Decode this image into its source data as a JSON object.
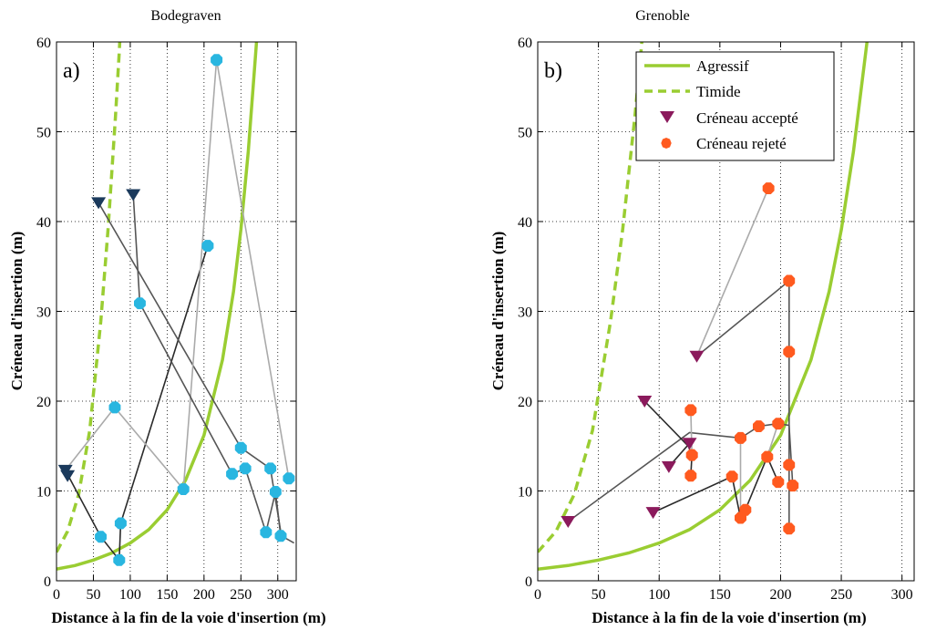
{
  "colors": {
    "agressif": "#9acd32",
    "timide": "#9acd32",
    "accepted_left": "#1b3a5c",
    "rejected_left": "#29b6e0",
    "accepted_right": "#8b1a5c",
    "rejected_right": "#ff5a1f",
    "trajectory_dark": "#2a2a2a",
    "trajectory_mid": "#555555",
    "trajectory_light": "#aaaaaa"
  },
  "chart_data": [
    {
      "type": "scatter",
      "title": "Bodegraven",
      "panel_label": "a)",
      "xlabel": "Distance à la fin de la voie d'insertion (m)",
      "ylabel": "Créneau d'insertion (m)",
      "xlim": [
        0,
        325
      ],
      "ylim": [
        0,
        60
      ],
      "xticks": [
        0,
        50,
        100,
        150,
        200,
        250,
        300
      ],
      "yticks": [
        0,
        10,
        20,
        30,
        40,
        50,
        60
      ],
      "grid": true,
      "curves": [
        {
          "name": "Agressif",
          "style": "solid",
          "points": [
            [
              0,
              1.3
            ],
            [
              25,
              1.7
            ],
            [
              50,
              2.3
            ],
            [
              75,
              3.1
            ],
            [
              100,
              4.2
            ],
            [
              125,
              5.7
            ],
            [
              150,
              7.9
            ],
            [
              175,
              11.2
            ],
            [
              200,
              16.2
            ],
            [
              225,
              24.6
            ],
            [
              240,
              32.2
            ],
            [
              250,
              39.1
            ],
            [
              260,
              47.8
            ],
            [
              270,
              58.7
            ],
            [
              273,
              62
            ]
          ]
        },
        {
          "name": "Timide",
          "style": "dashed",
          "points": [
            [
              0,
              3.2
            ],
            [
              15,
              5.5
            ],
            [
              30,
              9.6
            ],
            [
              45,
              16.7
            ],
            [
              60,
              28.9
            ],
            [
              70,
              39.2
            ],
            [
              80,
              51.7
            ],
            [
              85,
              58.8
            ],
            [
              87,
              62
            ]
          ]
        }
      ],
      "trajectories": [
        {
          "shade": "dark",
          "points": [
            [
              12,
              12.3
            ],
            [
              60,
              4.9
            ],
            [
              85,
              2.3
            ],
            [
              87,
              6.4
            ],
            [
              205,
              37.3
            ]
          ]
        },
        {
          "shade": "mid",
          "points": [
            [
              57,
              42.1
            ],
            [
              250,
              14.8
            ],
            [
              290,
              12.5
            ],
            [
              305,
              5.0
            ],
            [
              322,
              4.2
            ]
          ]
        },
        {
          "shade": "light",
          "points": [
            [
              12,
              12.3
            ],
            [
              79,
              19.3
            ],
            [
              172,
              10.2
            ],
            [
              217,
              58.0
            ],
            [
              315,
              11.4
            ]
          ]
        },
        {
          "shade": "mid",
          "points": [
            [
              104,
              43.0
            ],
            [
              113,
              30.9
            ],
            [
              238,
              11.9
            ],
            [
              256,
              12.5
            ],
            [
              284,
              5.4
            ],
            [
              297,
              9.9
            ],
            [
              304,
              5.0
            ]
          ]
        }
      ],
      "accepted": {
        "name": "Créneau accepté",
        "points": [
          [
            12,
            12.3
          ],
          [
            15,
            11.7
          ],
          [
            57,
            42.1
          ],
          [
            104,
            43.0
          ]
        ]
      },
      "rejected": {
        "name": "Créneau rejeté",
        "points": [
          [
            60,
            4.9
          ],
          [
            79,
            19.3
          ],
          [
            85,
            2.3
          ],
          [
            87,
            6.4
          ],
          [
            113,
            30.9
          ],
          [
            172,
            10.2
          ],
          [
            205,
            37.3
          ],
          [
            217,
            58.0
          ],
          [
            238,
            11.9
          ],
          [
            250,
            14.8
          ],
          [
            256,
            12.5
          ],
          [
            284,
            5.4
          ],
          [
            290,
            12.5
          ],
          [
            297,
            9.9
          ],
          [
            304,
            5.0
          ],
          [
            315,
            11.4
          ]
        ]
      }
    },
    {
      "type": "scatter",
      "title": "Grenoble",
      "panel_label": "b)",
      "xlabel": "Distance à la fin de la voie d'insertion (m)",
      "ylabel": "Créneau d'insertion (m)",
      "xlim": [
        0,
        325
      ],
      "ylim": [
        0,
        60
      ],
      "xticks": [
        0,
        50,
        100,
        150,
        200,
        250,
        300
      ],
      "yticks": [
        0,
        10,
        20,
        30,
        40,
        50,
        60
      ],
      "grid": true,
      "legend_position": "top-right",
      "curves": [
        {
          "name": "Agressif",
          "style": "solid",
          "points": [
            [
              0,
              1.3
            ],
            [
              25,
              1.7
            ],
            [
              50,
              2.3
            ],
            [
              75,
              3.1
            ],
            [
              100,
              4.2
            ],
            [
              125,
              5.7
            ],
            [
              150,
              7.9
            ],
            [
              175,
              11.2
            ],
            [
              200,
              16.2
            ],
            [
              225,
              24.6
            ],
            [
              240,
              32.2
            ],
            [
              250,
              39.1
            ],
            [
              260,
              47.8
            ],
            [
              270,
              58.7
            ],
            [
              273,
              62
            ]
          ]
        },
        {
          "name": "Timide",
          "style": "dashed",
          "points": [
            [
              0,
              3.2
            ],
            [
              15,
              5.5
            ],
            [
              30,
              9.6
            ],
            [
              45,
              16.7
            ],
            [
              60,
              28.9
            ],
            [
              70,
              39.2
            ],
            [
              80,
              51.7
            ],
            [
              85,
              58.8
            ],
            [
              87,
              62
            ]
          ]
        }
      ],
      "trajectories": [
        {
          "shade": "mid",
          "points": [
            [
              25,
              6.6
            ],
            [
              125,
              16.5
            ],
            [
              167,
              15.9
            ],
            [
              182,
              17.2
            ],
            [
              198,
              17.5
            ],
            [
              207,
              17.3
            ],
            [
              210,
              10.6
            ]
          ]
        },
        {
          "shade": "light",
          "points": [
            [
              131,
              25.0
            ],
            [
              190,
              43.7
            ]
          ]
        },
        {
          "shade": "mid",
          "points": [
            [
              131,
              25.0
            ],
            [
              207,
              33.4
            ],
            [
              207,
              25.5
            ],
            [
              207,
              12.9
            ],
            [
              207,
              5.8
            ]
          ]
        },
        {
          "shade": "dark",
          "points": [
            [
              88,
              20.0
            ],
            [
              124,
              15.0
            ],
            [
              127,
              14.0
            ],
            [
              126,
              11.7
            ]
          ]
        },
        {
          "shade": "light",
          "points": [
            [
              127,
              14.0
            ],
            [
              126,
              19.0
            ]
          ]
        },
        {
          "shade": "dark",
          "points": [
            [
              95,
              7.6
            ],
            [
              160,
              11.6
            ],
            [
              167,
              7.0
            ]
          ]
        },
        {
          "shade": "light",
          "points": [
            [
              167,
              7.0
            ],
            [
              167,
              15.9
            ]
          ]
        },
        {
          "shade": "dark",
          "points": [
            [
              108,
              12.7
            ],
            [
              125,
              15.3
            ]
          ]
        },
        {
          "shade": "dark",
          "points": [
            [
              171,
              7.9
            ],
            [
              189,
              13.8
            ],
            [
              198,
              11.0
            ]
          ]
        },
        {
          "shade": "light",
          "points": [
            [
              189,
              13.8
            ],
            [
              198,
              17.5
            ]
          ]
        }
      ],
      "accepted": {
        "name": "Créneau accepté",
        "points": [
          [
            25,
            6.6
          ],
          [
            88,
            20.0
          ],
          [
            95,
            7.6
          ],
          [
            108,
            12.7
          ],
          [
            125,
            15.3
          ],
          [
            131,
            25.0
          ]
        ]
      },
      "rejected": {
        "name": "Créneau rejeté",
        "points": [
          [
            126,
            11.7
          ],
          [
            126,
            19.0
          ],
          [
            127,
            14.0
          ],
          [
            160,
            11.6
          ],
          [
            167,
            7.0
          ],
          [
            167,
            15.9
          ],
          [
            171,
            7.9
          ],
          [
            182,
            17.2
          ],
          [
            189,
            13.8
          ],
          [
            190,
            43.7
          ],
          [
            198,
            11.0
          ],
          [
            198,
            17.5
          ],
          [
            207,
            33.4
          ],
          [
            207,
            25.5
          ],
          [
            207,
            12.9
          ],
          [
            207,
            5.8
          ],
          [
            210,
            10.6
          ]
        ]
      }
    }
  ],
  "legend": {
    "items": [
      {
        "key": "agressif",
        "label": "Agressif"
      },
      {
        "key": "timide",
        "label": "Timide"
      },
      {
        "key": "accepted",
        "label": "Créneau accepté"
      },
      {
        "key": "rejected",
        "label": "Créneau rejeté"
      }
    ]
  }
}
